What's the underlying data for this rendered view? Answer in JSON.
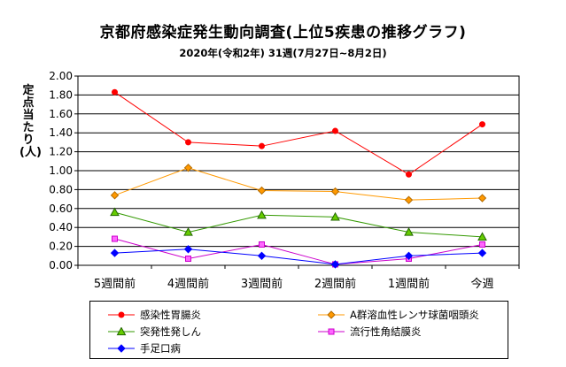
{
  "chart_data": {
    "type": "line",
    "title": "京都府感染症発生動向調査(上位5疾患の推移グラフ)",
    "subtitle": "2020年(令和2年) 31週(7月27日~8月2日)",
    "ylabel": "定点当たり(人)",
    "xlabel": "",
    "categories": [
      "5週間前",
      "4週間前",
      "3週間前",
      "2週間前",
      "1週間前",
      "今週"
    ],
    "ylim": [
      0,
      2.0
    ],
    "yticks": [
      "0.00",
      "0.20",
      "0.40",
      "0.60",
      "0.80",
      "1.00",
      "1.20",
      "1.40",
      "1.60",
      "1.80",
      "2.00"
    ],
    "grid": true,
    "legend_position": "bottom",
    "series": [
      {
        "name": "感染性胃腸炎",
        "color": "#ff0000",
        "marker": "circle",
        "values": [
          1.83,
          1.3,
          1.26,
          1.42,
          0.96,
          1.49
        ]
      },
      {
        "name": "A群溶血性レンサ球菌咽頭炎",
        "color": "#ff9900",
        "marker": "diamond",
        "values": [
          0.74,
          1.03,
          0.79,
          0.78,
          0.69,
          0.71
        ]
      },
      {
        "name": "突発性発しん",
        "color": "#339900",
        "marker": "triangle",
        "values": [
          0.56,
          0.35,
          0.53,
          0.51,
          0.35,
          0.3
        ]
      },
      {
        "name": "流行性角結膜炎",
        "color": "#cc00cc",
        "marker": "square",
        "values": [
          0.28,
          0.07,
          0.22,
          0.01,
          0.07,
          0.22
        ]
      },
      {
        "name": "手足口病",
        "color": "#0000ff",
        "marker": "diamond",
        "values": [
          0.13,
          0.17,
          0.1,
          0.01,
          0.1,
          0.13
        ]
      }
    ]
  }
}
